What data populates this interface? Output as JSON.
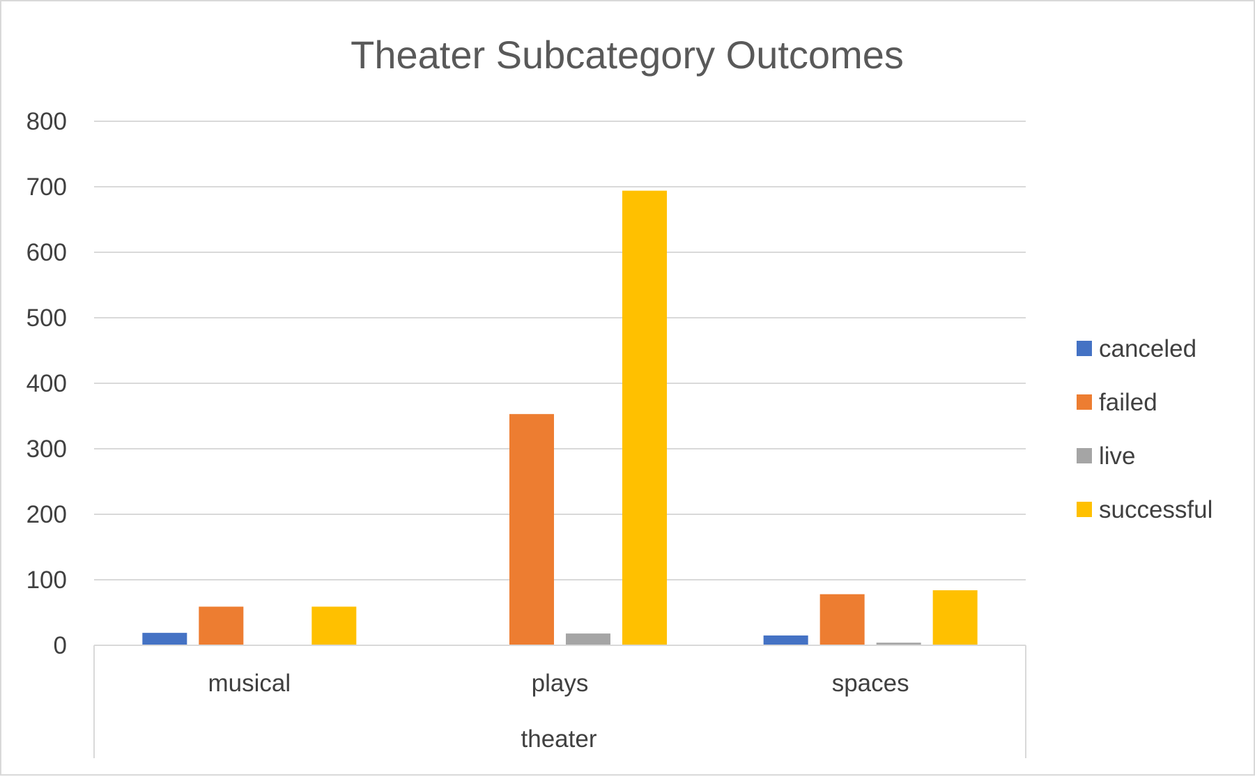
{
  "chart_data": {
    "type": "bar",
    "title": "Theater Subcategory Outcomes",
    "group_label": "theater",
    "categories": [
      "musical",
      "plays",
      "spaces"
    ],
    "series": [
      {
        "name": "canceled",
        "color": "#4472C4",
        "values": [
          19,
          0,
          15
        ]
      },
      {
        "name": "failed",
        "color": "#ED7D31",
        "values": [
          59,
          353,
          78
        ]
      },
      {
        "name": "live",
        "color": "#A5A5A5",
        "values": [
          0,
          18,
          4
        ]
      },
      {
        "name": "successful",
        "color": "#FFC000",
        "values": [
          59,
          694,
          84
        ]
      }
    ],
    "yticks": [
      "0",
      "100",
      "200",
      "300",
      "400",
      "500",
      "600",
      "700",
      "800"
    ],
    "ylim": [
      0,
      800
    ],
    "grid": true,
    "legend_position": "right",
    "colors": {
      "grid": "#d9d9d9",
      "axis_text": "#404040",
      "title": "#595959"
    }
  }
}
